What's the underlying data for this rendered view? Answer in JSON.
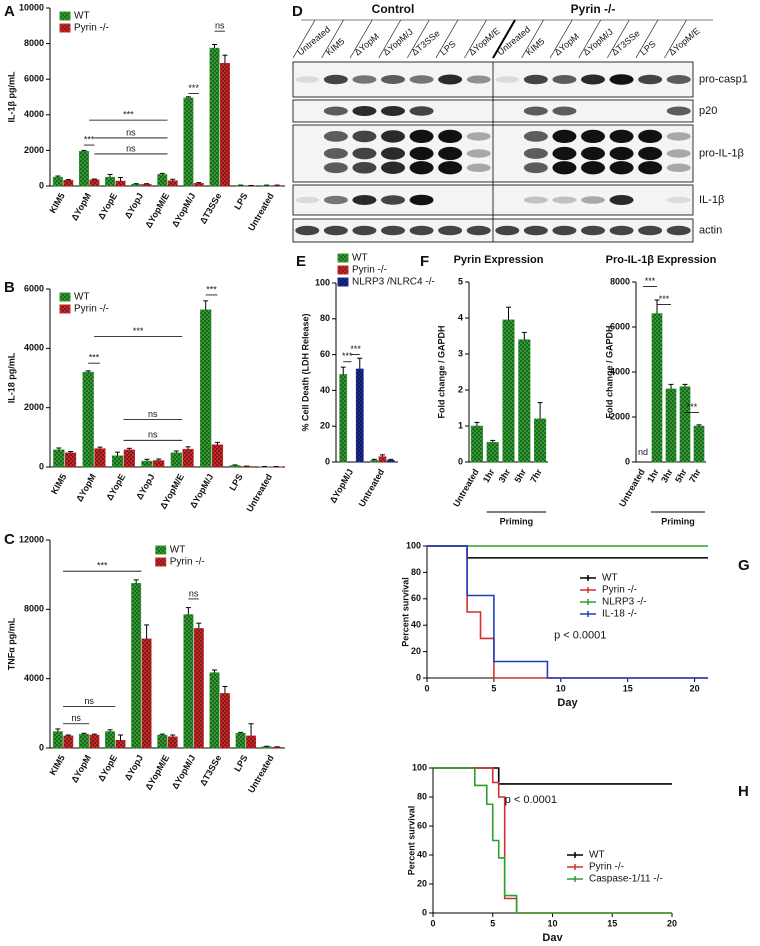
{
  "chart_data": [
    {
      "type": "bar",
      "panel": "A",
      "ylabel": "IL-1β pg/mL",
      "categories": [
        "KIM5",
        "ΔYopM",
        "ΔYopE",
        "ΔYopJ",
        "ΔYopM/E",
        "ΔYopM/J",
        "ΔT3SSe",
        "LPS",
        "Untreated"
      ],
      "series": [
        {
          "name": "WT",
          "color": "#2f9a2f",
          "values": [
            500,
            1950,
            500,
            100,
            650,
            4950,
            7750,
            30,
            30
          ],
          "errors": [
            60,
            50,
            150,
            30,
            60,
            60,
            200,
            20,
            20
          ]
        },
        {
          "name": "Pyrin -/-",
          "color": "#c62828",
          "values": [
            320,
            350,
            280,
            100,
            300,
            150,
            6900,
            20,
            30
          ],
          "errors": [
            40,
            40,
            200,
            30,
            80,
            40,
            450,
            10,
            20
          ]
        }
      ],
      "ylim": [
        0,
        10000
      ],
      "yticks": [
        0,
        2000,
        4000,
        6000,
        8000,
        10000
      ],
      "legend": "upper-left",
      "annotations": [
        "***",
        "***",
        "ns",
        "ns",
        "***",
        "ns"
      ]
    },
    {
      "type": "bar",
      "panel": "B",
      "ylabel": "IL-18 pg/mL",
      "categories": [
        "KIM5",
        "ΔYopM",
        "ΔYopE",
        "ΔYopJ",
        "ΔYopM/E",
        "ΔYopM/J",
        "LPS",
        "Untreated"
      ],
      "series": [
        {
          "name": "WT",
          "color": "#2f9a2f",
          "values": [
            580,
            3200,
            380,
            200,
            480,
            5300,
            50,
            10
          ],
          "errors": [
            60,
            40,
            120,
            60,
            60,
            300,
            20,
            5
          ]
        },
        {
          "name": "Pyrin -/-",
          "color": "#c62828",
          "values": [
            480,
            620,
            580,
            220,
            600,
            750,
            20,
            10
          ],
          "errors": [
            40,
            50,
            50,
            50,
            80,
            80,
            10,
            5
          ]
        }
      ],
      "ylim": [
        0,
        6000
      ],
      "yticks": [
        0,
        2000,
        4000,
        6000
      ],
      "legend": "upper-left",
      "annotations": [
        "***",
        "***",
        "ns",
        "ns",
        "***"
      ]
    },
    {
      "type": "bar",
      "panel": "C",
      "ylabel": "TNFα pg/mL",
      "categories": [
        "KIM5",
        "ΔYopM",
        "ΔYopE",
        "ΔYopJ",
        "ΔYopM/E",
        "ΔYopM/J",
        "ΔT3SSe",
        "LPS",
        "Untreated"
      ],
      "series": [
        {
          "name": "WT",
          "color": "#2f9a2f",
          "values": [
            950,
            800,
            950,
            9500,
            750,
            7700,
            4350,
            850,
            80
          ],
          "errors": [
            150,
            50,
            100,
            200,
            50,
            400,
            150,
            50,
            20
          ]
        },
        {
          "name": "Pyrin -/-",
          "color": "#c62828",
          "values": [
            700,
            750,
            450,
            6300,
            650,
            6900,
            3150,
            700,
            50
          ],
          "errors": [
            50,
            50,
            300,
            800,
            100,
            300,
            400,
            700,
            20
          ]
        }
      ],
      "ylim": [
        0,
        12000
      ],
      "yticks": [
        0,
        4000,
        8000,
        12000
      ],
      "legend": "upper-right",
      "annotations": [
        "ns",
        "ns",
        "***",
        "ns"
      ]
    },
    {
      "type": "bar",
      "panel": "E",
      "ylabel": "% Cell Death (LDH Release)",
      "categories": [
        "ΔYopM/J",
        "Untreated"
      ],
      "series": [
        {
          "name": "WT",
          "color": "#2f9a2f",
          "values": [
            49,
            1
          ],
          "errors": [
            4,
            0.5
          ]
        },
        {
          "name": "Pyrin -/-",
          "color": "#c62828",
          "values": [
            0,
            3
          ],
          "errors": [
            0,
            1
          ]
        },
        {
          "name": "NLRP3 /NLRC4 -/-",
          "color": "#1c2a8f",
          "values": [
            52,
            1
          ],
          "errors": [
            6,
            0.5
          ]
        }
      ],
      "ylim": [
        0,
        100
      ],
      "yticks": [
        0,
        20,
        40,
        60,
        80,
        100
      ],
      "legend": "top",
      "annotations": [
        "***",
        "***"
      ]
    },
    {
      "type": "bar",
      "panel": "F",
      "title": "Pyrin Expression",
      "ylabel": "Fold change / GAPDH",
      "xlabel": "Priming",
      "categories": [
        "Untreated",
        "1hr",
        "3hr",
        "5hr",
        "7hr"
      ],
      "series": [
        {
          "color": "#2f9a2f",
          "values": [
            1.0,
            0.55,
            3.95,
            3.4,
            1.2
          ],
          "errors": [
            0.1,
            0.05,
            0.35,
            0.2,
            0.45
          ]
        }
      ],
      "ylim": [
        0,
        5
      ],
      "yticks": [
        0,
        1,
        2,
        3,
        4,
        5
      ],
      "annotations": [
        "***",
        "***"
      ]
    },
    {
      "type": "bar",
      "title": "Pro-IL-1β Expression",
      "ylabel": "Fold change / GAPDH",
      "xlabel": "Priming",
      "categories": [
        "Untreated",
        "1hr",
        "3hr",
        "5hr",
        "7hr"
      ],
      "series": [
        {
          "color": "#2f9a2f",
          "values": [
            null,
            6600,
            3250,
            3350,
            1600
          ],
          "errors": [
            null,
            600,
            200,
            100,
            50
          ]
        }
      ],
      "ylim": [
        0,
        8000
      ],
      "yticks": [
        0,
        2000,
        4000,
        6000,
        8000
      ],
      "annotations": [
        "nd",
        "***",
        "***",
        "***"
      ]
    },
    {
      "type": "line",
      "panel": "G",
      "step": true,
      "xlabel": "Day",
      "ylabel": "Percent survival",
      "x": [
        0,
        3,
        4,
        5,
        9,
        21
      ],
      "series": [
        {
          "name": "WT",
          "color": "#000000",
          "values": [
            100,
            91,
            91,
            91,
            91,
            91
          ]
        },
        {
          "name": "Pyrin  -/-",
          "color": "#d32f2f",
          "values": [
            100,
            50,
            30,
            0,
            0,
            0
          ]
        },
        {
          "name": "NLRP3 -/-",
          "color": "#2ca02c",
          "values": [
            100,
            100,
            100,
            100,
            100,
            100
          ]
        },
        {
          "name": "IL-18 -/-",
          "color": "#1f3fbf",
          "values": [
            100,
            62.5,
            62.5,
            12.5,
            0,
            0
          ]
        }
      ],
      "xlim": [
        0,
        21
      ],
      "xticks": [
        0,
        5,
        10,
        15,
        20
      ],
      "ylim": [
        0,
        100
      ],
      "yticks": [
        0,
        20,
        40,
        60,
        80,
        100
      ],
      "legend": "right",
      "annotations": [
        "p < 0.0001"
      ]
    },
    {
      "type": "line",
      "panel": "H",
      "step": true,
      "xlabel": "Day",
      "ylabel": "Percent survival",
      "x": [
        0,
        3.5,
        4.5,
        5,
        5.5,
        6,
        7,
        20
      ],
      "series": [
        {
          "name": "WT",
          "color": "#000000",
          "values": [
            100,
            100,
            100,
            100,
            89,
            89,
            89,
            89
          ]
        },
        {
          "name": "Pyrin -/-",
          "color": "#d32f2f",
          "values": [
            100,
            100,
            100,
            90,
            80,
            10,
            0,
            0
          ]
        },
        {
          "name": "Caspase-1/11 -/-",
          "color": "#2ca02c",
          "values": [
            100,
            88,
            75,
            50,
            38,
            12,
            0,
            0
          ]
        }
      ],
      "xlim": [
        0,
        20
      ],
      "xticks": [
        0,
        5,
        10,
        15,
        20
      ],
      "ylim": [
        0,
        100
      ],
      "yticks": [
        0,
        20,
        40,
        60,
        80,
        100
      ],
      "legend": "lower-right",
      "annotations": [
        "p < 0.0001"
      ]
    }
  ],
  "blot": {
    "panel": "D",
    "groups": [
      "Control",
      "Pyrin -/-"
    ],
    "lanes": [
      "Untreated",
      "KIM5",
      "ΔYopM",
      "ΔYopM/J",
      "ΔT3SSe",
      "LPS",
      "ΔYopM/E",
      "Untreated",
      "KIM5",
      "ΔYopM",
      "ΔYopM/J",
      "ΔT3SSe",
      "LPS",
      "ΔYopM/E"
    ],
    "rows": [
      "pro-casp1",
      "p20",
      "pro-IL-1β",
      "IL-1β",
      "actin"
    ]
  }
}
